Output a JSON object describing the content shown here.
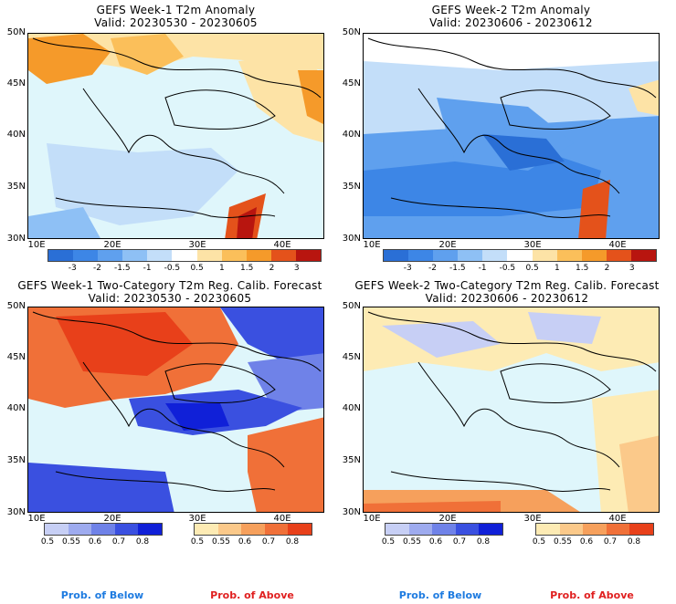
{
  "panels": [
    {
      "title": "GEFS Week-1 T2m Anomaly",
      "valid": "Valid: 20230530 - 20230605"
    },
    {
      "title": "GEFS Week-2 T2m Anomaly",
      "valid": "Valid: 20230606 - 20230612"
    },
    {
      "title": "GEFS Week-1 Two-Category T2m Reg. Calib. Forecast",
      "valid": "Valid: 20230530 - 20230605"
    },
    {
      "title": "GEFS Week-2 Two-Category T2m Reg. Calib. Forecast",
      "valid": "Valid: 20230606 - 20230612"
    }
  ],
  "axes": {
    "lat_labels": [
      "50N",
      "45N",
      "40N",
      "35N",
      "30N"
    ],
    "lon_labels": [
      "10E",
      "20E",
      "30E",
      "40E"
    ]
  },
  "anomaly_colorbar": {
    "labels": [
      "-3",
      "-2",
      "-1.5",
      "-1",
      "-0.5",
      "0.5",
      "1",
      "1.5",
      "2",
      "3"
    ],
    "colors": [
      "#2a6fd6",
      "#3d86e6",
      "#5fa0ee",
      "#8ec0f5",
      "#c3def9",
      "#ffffff",
      "#fde3a6",
      "#fbbf5a",
      "#f59a2a",
      "#e4521b",
      "#b8150f"
    ]
  },
  "prob_below_colorbar": {
    "labels": [
      "0.5",
      "0.55",
      "0.6",
      "0.7",
      "0.8"
    ],
    "colors": [
      "#c7cff5",
      "#9eabef",
      "#6f82e8",
      "#3a50e0",
      "#1020d8"
    ]
  },
  "prob_above_colorbar": {
    "labels": [
      "0.5",
      "0.55",
      "0.6",
      "0.7",
      "0.8"
    ],
    "colors": [
      "#fdebb4",
      "#fbc98a",
      "#f6a05c",
      "#f07038",
      "#e8401a"
    ]
  },
  "footer": {
    "left_below": "Prob. of Below",
    "left_above": "Prob. of Above",
    "right_below": "Prob. of Below",
    "right_above": "Prob. of Above"
  },
  "colors": {
    "below_text": "#1e7be0",
    "above_text": "#e02020",
    "sea": "#dff6fb"
  }
}
